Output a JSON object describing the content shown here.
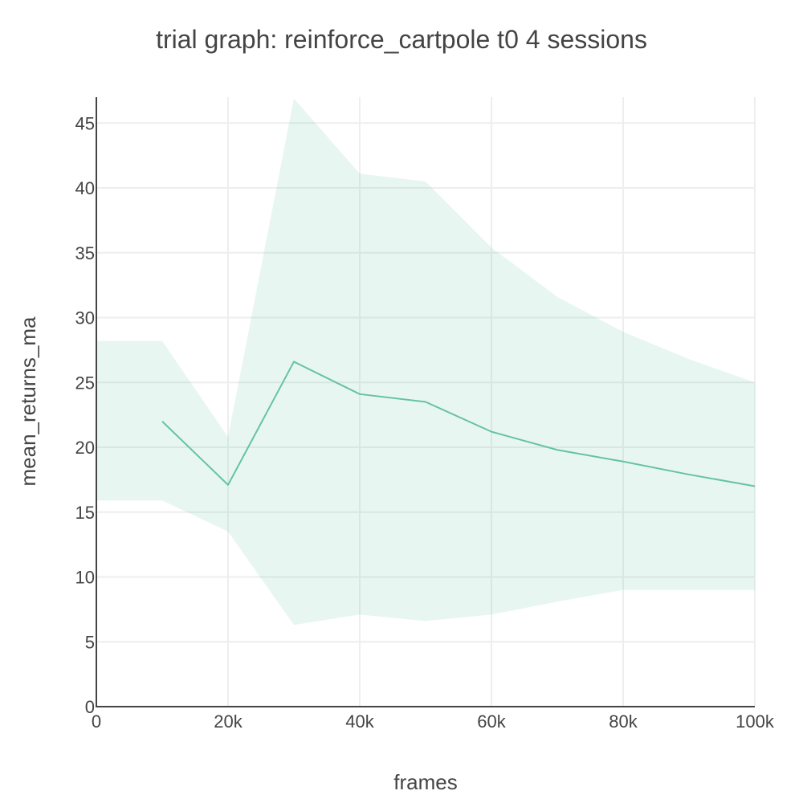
{
  "chart_data": {
    "type": "line",
    "title": "trial graph: reinforce_cartpole t0 4 sessions",
    "xlabel": "frames",
    "ylabel": "mean_returns_ma",
    "xlim": [
      0,
      100000
    ],
    "ylim": [
      0,
      47
    ],
    "grid": true,
    "x_ticks": [
      {
        "value": 0,
        "label": "0"
      },
      {
        "value": 20000,
        "label": "20k"
      },
      {
        "value": 40000,
        "label": "40k"
      },
      {
        "value": 60000,
        "label": "60k"
      },
      {
        "value": 80000,
        "label": "80k"
      },
      {
        "value": 100000,
        "label": "100k"
      }
    ],
    "y_ticks": [
      {
        "value": 0,
        "label": "0"
      },
      {
        "value": 5,
        "label": "5"
      },
      {
        "value": 10,
        "label": "10"
      },
      {
        "value": 15,
        "label": "15"
      },
      {
        "value": 20,
        "label": "20"
      },
      {
        "value": 25,
        "label": "25"
      },
      {
        "value": 30,
        "label": "30"
      },
      {
        "value": 35,
        "label": "35"
      },
      {
        "value": 40,
        "label": "40"
      },
      {
        "value": 45,
        "label": "45"
      }
    ],
    "series": [
      {
        "color": "#66c2a5",
        "x": [
          10000,
          20000,
          30000,
          40000,
          50000,
          60000,
          70000,
          80000,
          90000,
          100000
        ],
        "y": [
          22.0,
          17.1,
          26.6,
          24.1,
          23.5,
          21.2,
          19.8,
          18.9,
          17.9,
          17.0
        ]
      }
    ],
    "band": {
      "color": "#66c2a5",
      "opacity": 0.15,
      "x": [
        0,
        10000,
        20000,
        30000,
        40000,
        50000,
        60000,
        70000,
        80000,
        90000,
        100000
      ],
      "upper": [
        28.2,
        28.2,
        20.8,
        46.9,
        41.1,
        40.5,
        35.4,
        31.6,
        28.9,
        26.8,
        25.0
      ],
      "lower": [
        15.9,
        15.9,
        13.5,
        6.3,
        7.1,
        6.6,
        7.1,
        8.1,
        9.0,
        9.0,
        9.0
      ]
    }
  }
}
